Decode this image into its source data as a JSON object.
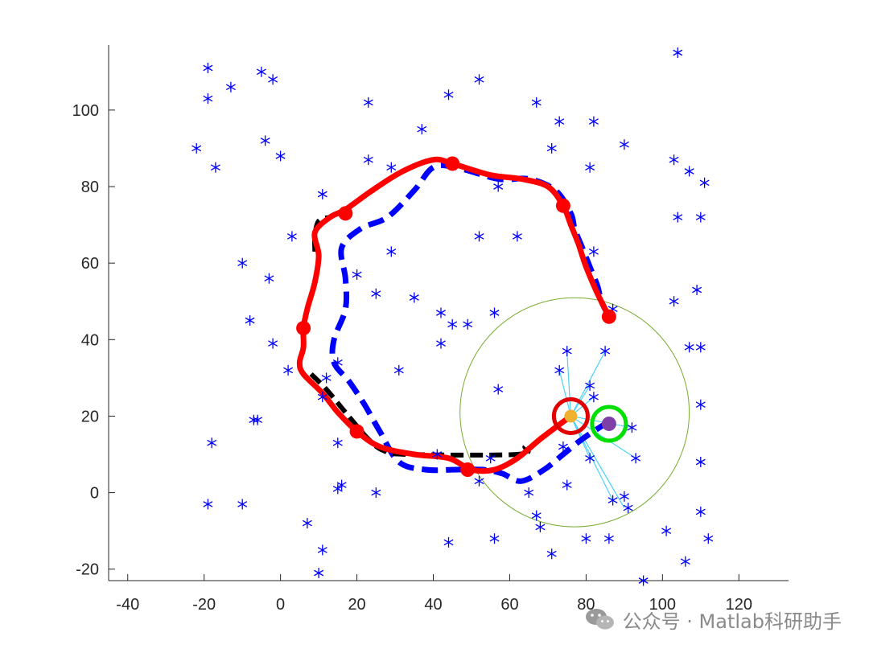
{
  "chart_data": {
    "type": "scatter",
    "title": "",
    "xlabel": "",
    "ylabel": "",
    "xlim": [
      -45,
      133
    ],
    "ylim": [
      -23,
      117
    ],
    "xticks": [
      -40,
      -20,
      0,
      20,
      40,
      60,
      80,
      100,
      120
    ],
    "yticks": [
      -20,
      0,
      20,
      40,
      60,
      80,
      100
    ],
    "grid": false,
    "series": [
      {
        "kind": "scatter",
        "color": "#0000ff",
        "marker": "asterisk",
        "points": [
          [
            104,
            115
          ],
          [
            -19,
            111
          ],
          [
            -5,
            110
          ],
          [
            -2,
            108
          ],
          [
            52,
            108
          ],
          [
            -13,
            106
          ],
          [
            -19,
            103
          ],
          [
            44,
            104
          ],
          [
            23,
            102
          ],
          [
            67,
            102
          ],
          [
            73,
            97
          ],
          [
            82,
            97
          ],
          [
            37,
            95
          ],
          [
            -22,
            90
          ],
          [
            -4,
            92
          ],
          [
            0,
            88
          ],
          [
            71,
            90
          ],
          [
            90,
            91
          ],
          [
            103,
            87
          ],
          [
            23,
            87
          ],
          [
            29,
            85
          ],
          [
            -17,
            85
          ],
          [
            81,
            85
          ],
          [
            107,
            84
          ],
          [
            111,
            81
          ],
          [
            11,
            78
          ],
          [
            57,
            80
          ],
          [
            104,
            72
          ],
          [
            110,
            72
          ],
          [
            3,
            67
          ],
          [
            52,
            67
          ],
          [
            62,
            67
          ],
          [
            29,
            63
          ],
          [
            82,
            63
          ],
          [
            -10,
            60
          ],
          [
            20,
            57
          ],
          [
            -3,
            56
          ],
          [
            25,
            52
          ],
          [
            35,
            51
          ],
          [
            109,
            53
          ],
          [
            42,
            47
          ],
          [
            56,
            47
          ],
          [
            45,
            44
          ],
          [
            49,
            44
          ],
          [
            87,
            48
          ],
          [
            103,
            50
          ],
          [
            -8,
            45
          ],
          [
            -2,
            39
          ],
          [
            42,
            39
          ],
          [
            107,
            38
          ],
          [
            110,
            38
          ],
          [
            75,
            37
          ],
          [
            85,
            37
          ],
          [
            15,
            34
          ],
          [
            2,
            32
          ],
          [
            31,
            32
          ],
          [
            73,
            32
          ],
          [
            12,
            30
          ],
          [
            57,
            27
          ],
          [
            81,
            28
          ],
          [
            11,
            25
          ],
          [
            82,
            25
          ],
          [
            -7,
            19
          ],
          [
            -6,
            19
          ],
          [
            110,
            23
          ],
          [
            92,
            17
          ],
          [
            -18,
            13
          ],
          [
            15,
            13
          ],
          [
            74,
            12
          ],
          [
            41,
            10
          ],
          [
            55,
            9
          ],
          [
            81,
            9
          ],
          [
            93,
            9
          ],
          [
            110,
            8
          ],
          [
            15,
            1
          ],
          [
            16,
            2
          ],
          [
            25,
            0
          ],
          [
            52,
            3
          ],
          [
            75,
            2
          ],
          [
            65,
            0
          ],
          [
            87,
            -2
          ],
          [
            90,
            -1
          ],
          [
            -19,
            -3
          ],
          [
            -10,
            -3
          ],
          [
            91,
            -4
          ],
          [
            110,
            -5
          ],
          [
            67,
            -6
          ],
          [
            68,
            -9
          ],
          [
            7,
            -8
          ],
          [
            101,
            -10
          ],
          [
            56,
            -12
          ],
          [
            80,
            -12
          ],
          [
            86,
            -12
          ],
          [
            112,
            -12
          ],
          [
            44,
            -13
          ],
          [
            11,
            -15
          ],
          [
            71,
            -16
          ],
          [
            106,
            -18
          ],
          [
            10,
            -21
          ],
          [
            95,
            -23
          ]
        ]
      },
      {
        "kind": "line",
        "color": "#0000ff",
        "style": "dashed",
        "points": [
          [
            86,
            46
          ],
          [
            84,
            50
          ],
          [
            83,
            54
          ],
          [
            81,
            59
          ],
          [
            79,
            64
          ],
          [
            77,
            69
          ],
          [
            76,
            73
          ],
          [
            72,
            79
          ],
          [
            65,
            82
          ],
          [
            57,
            82
          ],
          [
            46,
            85
          ],
          [
            40,
            85
          ],
          [
            35,
            79
          ],
          [
            28,
            72
          ],
          [
            21,
            69
          ],
          [
            16,
            64
          ],
          [
            17,
            56
          ],
          [
            17,
            48
          ],
          [
            14,
            40
          ],
          [
            14,
            34
          ],
          [
            18,
            29
          ],
          [
            22,
            23
          ],
          [
            26,
            16
          ],
          [
            31,
            8
          ],
          [
            38,
            6
          ],
          [
            46,
            6
          ],
          [
            53,
            6
          ],
          [
            58,
            5
          ],
          [
            63,
            3
          ],
          [
            69,
            6
          ],
          [
            74,
            10
          ],
          [
            79,
            14
          ],
          [
            85,
            18
          ]
        ]
      },
      {
        "kind": "line",
        "color": "#000000",
        "style": "dashed",
        "points": [
          [
            9,
            63
          ],
          [
            9,
            67
          ],
          [
            10,
            71
          ],
          [
            13,
            72
          ],
          [
            8,
            31
          ],
          [
            12,
            27
          ],
          [
            17,
            21
          ],
          [
            23,
            14
          ],
          [
            27,
            11
          ],
          [
            33,
            10
          ],
          [
            62,
            10
          ],
          [
            64,
            12
          ]
        ]
      },
      {
        "kind": "line",
        "color": "#ff0000",
        "style": "solid",
        "points": [
          [
            86,
            46
          ],
          [
            83,
            52
          ],
          [
            80,
            59
          ],
          [
            78,
            65
          ],
          [
            76,
            70
          ],
          [
            74,
            75
          ],
          [
            70,
            80
          ],
          [
            63,
            82
          ],
          [
            55,
            83
          ],
          [
            45,
            86
          ],
          [
            40,
            87
          ],
          [
            32,
            84
          ],
          [
            24,
            79
          ],
          [
            17,
            74
          ],
          [
            13,
            72
          ],
          [
            9,
            68
          ],
          [
            10,
            62
          ],
          [
            9,
            55
          ],
          [
            7,
            48
          ],
          [
            6,
            43
          ],
          [
            6,
            38
          ],
          [
            5,
            34
          ],
          [
            6,
            31
          ],
          [
            11,
            26
          ],
          [
            15,
            21
          ],
          [
            20,
            16
          ],
          [
            26,
            12
          ],
          [
            35,
            10
          ],
          [
            44,
            9
          ],
          [
            50,
            6
          ],
          [
            56,
            6
          ],
          [
            62,
            9
          ],
          [
            68,
            14
          ],
          [
            76,
            20
          ]
        ]
      }
    ],
    "waypoints": [
      [
        45,
        86
      ],
      [
        74,
        75
      ],
      [
        86,
        46
      ],
      [
        17,
        73
      ],
      [
        6,
        43
      ],
      [
        20,
        16
      ],
      [
        49,
        6
      ]
    ],
    "robot": {
      "actual": [
        76,
        20
      ],
      "reference": [
        86,
        18
      ]
    },
    "sensing_circle": {
      "center": [
        77,
        21
      ],
      "radius": 30
    },
    "sensor_rays": [
      [
        75,
        37
      ],
      [
        85,
        37
      ],
      [
        81,
        28
      ],
      [
        82,
        25
      ],
      [
        92,
        17
      ],
      [
        93,
        9
      ],
      [
        81,
        9
      ],
      [
        87,
        -2
      ],
      [
        90,
        -4
      ],
      [
        73,
        32
      ]
    ]
  },
  "watermark": {
    "text": "公众号 · Matlab科研助手"
  }
}
